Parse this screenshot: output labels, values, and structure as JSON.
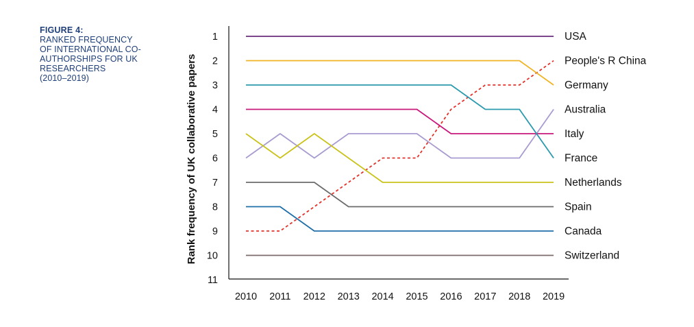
{
  "figure": {
    "label": "FIGURE 4:",
    "title": "RANKED FREQUENCY\nOF INTERNATIONAL CO-\nAUTHORSHIPS FOR UK\nRESEARCHERS\n(2010–2019)"
  },
  "chart_data": {
    "type": "line",
    "ylabel": "Rank frequency of UK collaborative papers",
    "xlabel": "",
    "x": [
      2010,
      2011,
      2012,
      2013,
      2014,
      2015,
      2016,
      2017,
      2018,
      2019
    ],
    "ylim": [
      1,
      11
    ],
    "y_ticks": [
      1,
      2,
      3,
      4,
      5,
      6,
      7,
      8,
      9,
      10,
      11
    ],
    "y_inverted": true,
    "grid": false,
    "legend": "right, labels at line ends",
    "series": [
      {
        "name": "USA",
        "color": "#6a2c7e",
        "dashed": false,
        "values": [
          1,
          1,
          1,
          1,
          1,
          1,
          1,
          1,
          1,
          1
        ]
      },
      {
        "name": "People's R China",
        "color": "#e3312a",
        "dashed": true,
        "values": [
          9,
          9,
          8,
          7,
          6,
          6,
          4,
          3,
          3,
          2
        ]
      },
      {
        "name": "Germany",
        "color": "#f0b323",
        "dashed": false,
        "values": [
          2,
          2,
          2,
          2,
          2,
          2,
          2,
          2,
          2,
          3
        ]
      },
      {
        "name": "Australia",
        "color": "#a89bd0",
        "dashed": false,
        "values": [
          6,
          5,
          6,
          5,
          5,
          5,
          6,
          6,
          6,
          4
        ]
      },
      {
        "name": "Italy",
        "color": "#c8177a",
        "dashed": false,
        "values": [
          4,
          4,
          4,
          4,
          4,
          4,
          5,
          5,
          5,
          5
        ]
      },
      {
        "name": "France",
        "color": "#2a9aad",
        "dashed": false,
        "values": [
          3,
          3,
          3,
          3,
          3,
          3,
          3,
          4,
          4,
          6
        ]
      },
      {
        "name": "Netherlands",
        "color": "#c9c21a",
        "dashed": false,
        "values": [
          5,
          6,
          5,
          6,
          7,
          7,
          7,
          7,
          7,
          7
        ]
      },
      {
        "name": "Spain",
        "color": "#6b6b6b",
        "dashed": false,
        "values": [
          7,
          7,
          7,
          8,
          8,
          8,
          8,
          8,
          8,
          8
        ]
      },
      {
        "name": "Canada",
        "color": "#1f6ea8",
        "dashed": false,
        "values": [
          8,
          8,
          9,
          9,
          9,
          9,
          9,
          9,
          9,
          9
        ]
      },
      {
        "name": "Switzerland",
        "color": "#7a6a6a",
        "dashed": false,
        "values": [
          10,
          10,
          10,
          10,
          10,
          10,
          10,
          10,
          10,
          10
        ]
      }
    ]
  }
}
